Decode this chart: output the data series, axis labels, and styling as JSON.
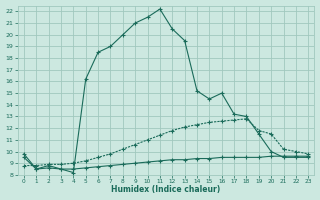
{
  "xlabel": "Humidex (Indice chaleur)",
  "bg_color": "#cce8e0",
  "grid_color": "#a0c8be",
  "line_color": "#1a6b5a",
  "xlim": [
    -0.5,
    23.5
  ],
  "ylim": [
    8,
    22.5
  ],
  "yticks": [
    8,
    9,
    10,
    11,
    12,
    13,
    14,
    15,
    16,
    17,
    18,
    19,
    20,
    21,
    22
  ],
  "xticks": [
    0,
    1,
    2,
    3,
    4,
    5,
    6,
    7,
    8,
    9,
    10,
    11,
    12,
    13,
    14,
    15,
    16,
    17,
    18,
    19,
    20,
    21,
    22,
    23
  ],
  "line1_x": [
    0,
    1,
    2,
    3,
    4,
    5,
    6,
    7,
    8,
    9,
    10,
    11,
    12,
    13,
    14,
    15,
    16,
    17,
    18,
    19,
    20,
    21,
    22,
    23
  ],
  "line1_y": [
    9.8,
    8.5,
    8.8,
    8.5,
    8.2,
    16.2,
    18.5,
    19.0,
    20.0,
    21.0,
    21.5,
    22.2,
    20.5,
    19.5,
    15.2,
    14.5,
    15.0,
    13.2,
    13.0,
    11.5,
    10.0,
    9.5,
    9.5,
    9.5
  ],
  "line2_x": [
    0,
    1,
    2,
    3,
    4,
    5,
    6,
    7,
    8,
    9,
    10,
    11,
    12,
    13,
    14,
    15,
    16,
    17,
    18,
    19,
    20,
    21,
    22,
    23
  ],
  "line2_y": [
    8.8,
    8.8,
    8.9,
    8.9,
    9.0,
    9.2,
    9.5,
    9.8,
    10.2,
    10.6,
    11.0,
    11.4,
    11.8,
    12.1,
    12.3,
    12.5,
    12.6,
    12.7,
    12.8,
    11.8,
    11.5,
    10.2,
    10.0,
    9.8
  ],
  "line3_x": [
    0,
    1,
    2,
    3,
    4,
    5,
    6,
    7,
    8,
    9,
    10,
    11,
    12,
    13,
    14,
    15,
    16,
    17,
    18,
    19,
    20,
    21,
    22,
    23
  ],
  "line3_y": [
    9.5,
    8.5,
    8.6,
    8.5,
    8.5,
    8.6,
    8.7,
    8.8,
    8.9,
    9.0,
    9.1,
    9.2,
    9.3,
    9.3,
    9.4,
    9.4,
    9.5,
    9.5,
    9.5,
    9.5,
    9.6,
    9.6,
    9.6,
    9.6
  ]
}
